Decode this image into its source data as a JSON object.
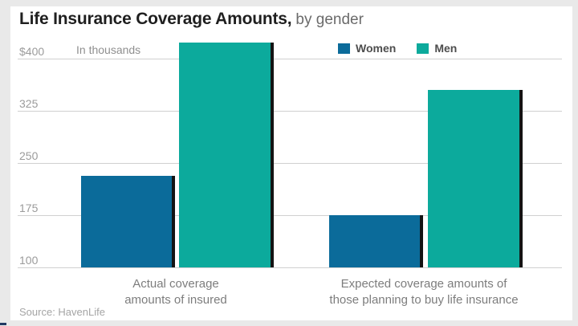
{
  "header": {
    "title": "Life Insurance Coverage Amounts,",
    "subtitle": "by gender"
  },
  "footer": {
    "source": "Source: HavenLife"
  },
  "chart_data": {
    "type": "bar",
    "title": "Life Insurance Coverage Amounts, by gender",
    "unit_note": "In thousands",
    "categories": [
      "Actual coverage amounts of insured",
      "Expected coverage amounts of those planning to buy life insurance"
    ],
    "category_label_lines": [
      [
        "Actual coverage",
        "amounts of insured"
      ],
      [
        "Expected coverage amounts of",
        "those planning to buy life insurance"
      ]
    ],
    "series": [
      {
        "name": "Women",
        "color": "#0b6b9a",
        "values": [
          231,
          175
        ]
      },
      {
        "name": "Men",
        "color": "#0caa9c",
        "values": [
          423,
          355
        ]
      }
    ],
    "axis": {
      "ylim": [
        100,
        430
      ],
      "ticks": [
        100,
        175,
        250,
        325,
        400
      ],
      "tick_labels": [
        "100",
        "175",
        "250",
        "325",
        "$400"
      ],
      "grid": true,
      "unit": "thousands of dollars"
    },
    "legend_position": "top-center"
  },
  "colors": {
    "women": "#0b6b9a",
    "men": "#0caa9c",
    "bar_shadow": "#141414",
    "grid": "#d0d0d0",
    "title_text": "#1f1f1f",
    "subtitle_text": "#6b6b6b",
    "muted_text": "#8f8f8f",
    "page_background": "#e9e9e9",
    "card_background": "#ffffff"
  }
}
